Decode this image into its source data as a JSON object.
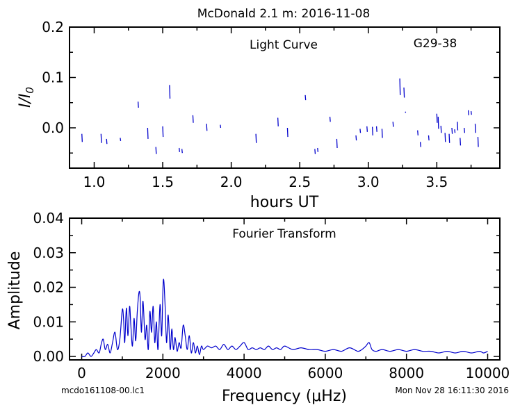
{
  "header": {
    "title": "McDonald 2.1 m:  2016-11-08",
    "footer_left": "mcdo161108-00.lc1",
    "footer_right": "Mon Nov 28 16:11:30 2016"
  },
  "chart_data": [
    {
      "type": "line",
      "annotation": "Light Curve",
      "object": "G29-38",
      "xlabel": "hours UT",
      "ylabel": "I/I0",
      "xlim": [
        0.82,
        3.96
      ],
      "ylim": [
        -0.08,
        0.2
      ],
      "xticks": [
        "1.0",
        "1.5",
        "2.0",
        "2.5",
        "3.0",
        "3.5"
      ],
      "yticks": [
        "0.0",
        "0.1",
        "0.2"
      ],
      "color": "#0000cc",
      "segments": [
        [
          0.91,
          -0.012,
          -0.028
        ],
        [
          1.05,
          -0.012,
          -0.03
        ],
        [
          1.09,
          -0.022,
          -0.032
        ],
        [
          1.19,
          -0.02,
          -0.026
        ],
        [
          1.32,
          0.052,
          0.04
        ],
        [
          1.39,
          0.0,
          -0.022
        ],
        [
          1.45,
          -0.038,
          -0.052
        ],
        [
          1.5,
          0.003,
          -0.018
        ],
        [
          1.55,
          0.085,
          0.058
        ],
        [
          1.62,
          -0.04,
          -0.048
        ],
        [
          1.64,
          -0.042,
          -0.05
        ],
        [
          1.72,
          0.025,
          0.01
        ],
        [
          1.82,
          0.008,
          -0.006
        ],
        [
          1.92,
          0.006,
          0.0
        ],
        [
          2.18,
          -0.012,
          -0.03
        ],
        [
          2.34,
          0.02,
          0.003
        ],
        [
          2.41,
          0.0,
          -0.018
        ],
        [
          2.54,
          0.065,
          0.055
        ],
        [
          2.61,
          -0.042,
          -0.052
        ],
        [
          2.63,
          -0.04,
          -0.048
        ],
        [
          2.72,
          0.022,
          0.012
        ],
        [
          2.77,
          -0.022,
          -0.04
        ],
        [
          2.91,
          -0.015,
          -0.025
        ],
        [
          2.94,
          -0.002,
          -0.01
        ],
        [
          2.99,
          0.003,
          -0.008
        ],
        [
          3.03,
          0.002,
          -0.015
        ],
        [
          3.06,
          0.003,
          -0.008
        ],
        [
          3.1,
          -0.002,
          -0.02
        ],
        [
          3.18,
          0.012,
          0.002
        ],
        [
          3.23,
          0.098,
          0.065
        ],
        [
          3.26,
          0.08,
          0.06
        ],
        [
          3.27,
          0.032,
          0.03
        ],
        [
          3.36,
          -0.005,
          -0.015
        ],
        [
          3.38,
          -0.028,
          -0.038
        ],
        [
          3.44,
          -0.015,
          -0.025
        ],
        [
          3.5,
          0.028,
          0.01
        ],
        [
          3.51,
          0.022,
          -0.002
        ],
        [
          3.53,
          0.004,
          -0.01
        ],
        [
          3.56,
          -0.01,
          -0.028
        ],
        [
          3.59,
          -0.012,
          -0.03
        ],
        [
          3.61,
          0.0,
          -0.012
        ],
        [
          3.63,
          -0.003,
          -0.01
        ],
        [
          3.65,
          0.012,
          -0.005
        ],
        [
          3.67,
          -0.02,
          -0.035
        ],
        [
          3.7,
          0.0,
          -0.01
        ],
        [
          3.73,
          0.035,
          0.025
        ],
        [
          3.75,
          0.033,
          0.026
        ],
        [
          3.78,
          0.008,
          -0.01
        ],
        [
          3.8,
          -0.018,
          -0.038
        ]
      ]
    },
    {
      "type": "line",
      "annotation": "Fourier Transform",
      "xlabel": "Frequency (μHz)",
      "ylabel": "Amplitude",
      "xlim": [
        -300,
        10300
      ],
      "ylim": [
        -0.001,
        0.04
      ],
      "xticks": [
        "0",
        "2000",
        "4000",
        "6000",
        "8000",
        "10000"
      ],
      "yticks": [
        "0.00",
        "0.01",
        "0.02",
        "0.03",
        "0.04"
      ],
      "color": "#0000cc",
      "x": [
        0,
        80,
        150,
        230,
        300,
        360,
        430,
        480,
        530,
        580,
        640,
        700,
        760,
        820,
        880,
        940,
        1000,
        1030,
        1060,
        1100,
        1140,
        1180,
        1210,
        1250,
        1290,
        1330,
        1370,
        1410,
        1440,
        1470,
        1510,
        1560,
        1600,
        1640,
        1680,
        1720,
        1760,
        1800,
        1840,
        1880,
        1930,
        1970,
        2010,
        2050,
        2090,
        2130,
        2180,
        2220,
        2260,
        2300,
        2350,
        2400,
        2450,
        2500,
        2550,
        2600,
        2650,
        2700,
        2750,
        2800,
        2850,
        2900,
        2950,
        3000,
        3100,
        3200,
        3300,
        3400,
        3500,
        3600,
        3700,
        3800,
        3900,
        4000,
        4100,
        4200,
        4300,
        4400,
        4500,
        4600,
        4700,
        4800,
        4900,
        5000,
        5200,
        5400,
        5600,
        5800,
        6000,
        6200,
        6400,
        6600,
        6800,
        6900,
        7000,
        7080,
        7150,
        7250,
        7400,
        7600,
        7800,
        8000,
        8200,
        8400,
        8600,
        8800,
        9000,
        9200,
        9400,
        9600,
        9800,
        9900,
        10000
      ],
      "y": [
        0.0,
        0.0,
        0.001,
        0.0,
        0.001,
        0.002,
        0.001,
        0.0035,
        0.005,
        0.002,
        0.0035,
        0.001,
        0.004,
        0.007,
        0.002,
        0.005,
        0.0135,
        0.011,
        0.004,
        0.014,
        0.006,
        0.0145,
        0.009,
        0.003,
        0.011,
        0.0045,
        0.013,
        0.0185,
        0.017,
        0.007,
        0.016,
        0.005,
        0.009,
        0.002,
        0.013,
        0.007,
        0.0145,
        0.004,
        0.01,
        0.002,
        0.015,
        0.006,
        0.022,
        0.016,
        0.004,
        0.012,
        0.002,
        0.008,
        0.002,
        0.0055,
        0.0015,
        0.004,
        0.0025,
        0.009,
        0.006,
        0.002,
        0.006,
        0.001,
        0.004,
        0.001,
        0.003,
        0.0005,
        0.003,
        0.002,
        0.003,
        0.0025,
        0.003,
        0.002,
        0.0035,
        0.002,
        0.003,
        0.002,
        0.003,
        0.004,
        0.002,
        0.0025,
        0.002,
        0.0025,
        0.002,
        0.003,
        0.002,
        0.0025,
        0.002,
        0.003,
        0.002,
        0.0025,
        0.002,
        0.002,
        0.0015,
        0.002,
        0.0015,
        0.0025,
        0.0015,
        0.002,
        0.003,
        0.004,
        0.002,
        0.0015,
        0.002,
        0.0015,
        0.002,
        0.0015,
        0.002,
        0.0015,
        0.0015,
        0.001,
        0.0015,
        0.001,
        0.0015,
        0.001,
        0.0015,
        0.001,
        0.0015
      ]
    }
  ]
}
